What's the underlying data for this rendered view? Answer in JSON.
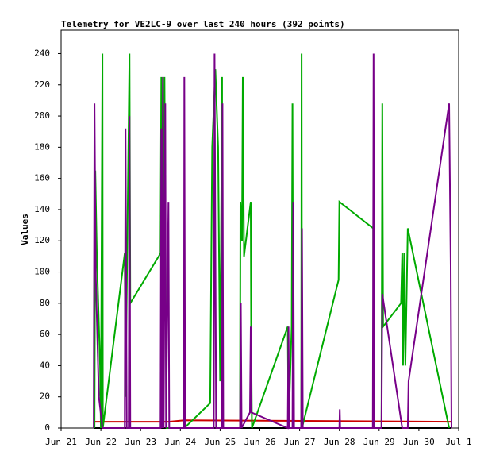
{
  "chart_data": {
    "type": "line",
    "title": "Telemetry for VE2LC-9 over last 240 hours (392 points)",
    "y_label": "Values",
    "xlim": [
      21,
      31
    ],
    "ylim": [
      0,
      255
    ],
    "xticks": [
      {
        "value": 21,
        "label": "Jun 21"
      },
      {
        "value": 22,
        "label": "Jun 22"
      },
      {
        "value": 23,
        "label": "Jun 23"
      },
      {
        "value": 24,
        "label": "Jun 24"
      },
      {
        "value": 25,
        "label": "Jun 25"
      },
      {
        "value": 26,
        "label": "Jun 26"
      },
      {
        "value": 27,
        "label": "Jun 27"
      },
      {
        "value": 28,
        "label": "Jun 28"
      },
      {
        "value": 29,
        "label": "Jun 29"
      },
      {
        "value": 30,
        "label": "Jun 30"
      },
      {
        "value": 31,
        "label": "Jul 1"
      }
    ],
    "yticks": [
      0,
      20,
      40,
      60,
      80,
      100,
      120,
      140,
      160,
      180,
      200,
      220,
      240
    ],
    "series": [
      {
        "color": "#000000",
        "x": [
          21.82,
          30.82
        ],
        "values": [
          0,
          0
        ]
      },
      {
        "color": "#cc0000",
        "x": [
          21.82,
          23.7,
          24.1,
          30.82
        ],
        "values": [
          4,
          4,
          5,
          4
        ]
      },
      {
        "color": "#00aa00",
        "x": [
          21.84,
          21.86,
          21.9,
          21.98,
          22.0,
          22.04,
          22.05,
          22.6,
          22.62,
          22.72,
          22.74,
          23.5,
          23.52,
          23.55,
          23.6,
          23.65,
          24.1,
          24.75,
          24.8,
          24.88,
          24.95,
          25.0,
          25.05,
          25.06,
          25.5,
          25.51,
          25.55,
          25.57,
          25.6,
          25.77,
          25.78,
          25.8,
          26.7,
          26.72,
          26.8,
          26.82,
          26.84,
          27.04,
          27.05,
          27.06,
          27.98,
          28.0,
          28.85,
          28.86,
          29.06,
          29.08,
          29.1,
          29.55,
          29.58,
          29.6,
          29.63,
          29.66,
          29.72,
          30.76
        ],
        "values": [
          0,
          165,
          110,
          40,
          0,
          240,
          0,
          112,
          20,
          240,
          80,
          112,
          225,
          0,
          225,
          0,
          0,
          16,
          180,
          230,
          180,
          30,
          225,
          0,
          0,
          145,
          120,
          225,
          110,
          145,
          65,
          0,
          65,
          0,
          65,
          208,
          0,
          0,
          240,
          0,
          95,
          145,
          128,
          0,
          0,
          208,
          65,
          80,
          112,
          40,
          112,
          40,
          128,
          0
        ]
      },
      {
        "color": "#770088",
        "x": [
          21.82,
          21.84,
          21.87,
          21.95,
          22.04,
          22.6,
          22.62,
          22.65,
          22.7,
          22.72,
          22.74,
          23.5,
          23.52,
          23.54,
          23.56,
          23.58,
          23.62,
          23.64,
          23.7,
          23.72,
          24.09,
          24.1,
          24.12,
          24.84,
          24.86,
          24.9,
          25.05,
          25.06,
          25.08,
          25.5,
          25.52,
          25.54,
          25.75,
          25.77,
          25.79,
          26.7,
          26.72,
          26.74,
          26.82,
          26.84,
          26.86,
          27.04,
          27.06,
          27.08,
          28.0,
          28.01,
          28.02,
          28.84,
          28.86,
          28.88,
          29.06,
          29.08,
          29.58,
          29.72,
          29.74,
          30.76,
          30.8,
          30.82
        ],
        "values": [
          0,
          208,
          100,
          20,
          0,
          0,
          192,
          0,
          0,
          200,
          0,
          0,
          192,
          0,
          225,
          0,
          208,
          0,
          145,
          0,
          0,
          225,
          0,
          0,
          240,
          0,
          0,
          208,
          0,
          0,
          80,
          0,
          10,
          65,
          10,
          0,
          65,
          0,
          0,
          145,
          0,
          0,
          128,
          0,
          0,
          12,
          0,
          0,
          240,
          0,
          0,
          86,
          0,
          0,
          30,
          208,
          104,
          0
        ]
      }
    ]
  }
}
